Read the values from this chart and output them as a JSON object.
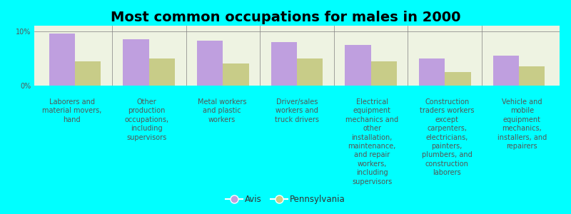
{
  "title": "Most common occupations for males in 2000",
  "background_color": "#00FFFF",
  "plot_bg_color": "#eef3e2",
  "categories": [
    "Laborers and\nmaterial movers,\nhand",
    "Other\nproduction\noccupations,\nincluding\nsupervisors",
    "Metal workers\nand plastic\nworkers",
    "Driver/sales\nworkers and\ntruck drivers",
    "Electrical\nequipment\nmechanics and\nother\ninstallation,\nmaintenance,\nand repair\nworkers,\nincluding\nsupervisors",
    "Construction\ntraders workers\nexcept\ncarpenters,\nelectricians,\npainters,\nplumbers, and\nconstruction\nlaborers",
    "Vehicle and\nmobile\nequipment\nmechanics,\ninstallers, and\nrepairers"
  ],
  "avis_values": [
    9.5,
    8.5,
    8.2,
    8.0,
    7.5,
    5.0,
    5.5
  ],
  "pennsylvania_values": [
    4.5,
    5.0,
    4.0,
    5.0,
    4.5,
    2.5,
    3.5
  ],
  "avis_color": "#bf9fdf",
  "pennsylvania_color": "#c8cc88",
  "ylim": [
    0,
    11
  ],
  "yticks": [
    0,
    10
  ],
  "ytick_labels": [
    "0%",
    "10%"
  ],
  "bar_width": 0.35,
  "legend_labels": [
    "Avis",
    "Pennsylvania"
  ],
  "title_fontsize": 14,
  "tick_fontsize": 7,
  "label_fontsize": 7
}
